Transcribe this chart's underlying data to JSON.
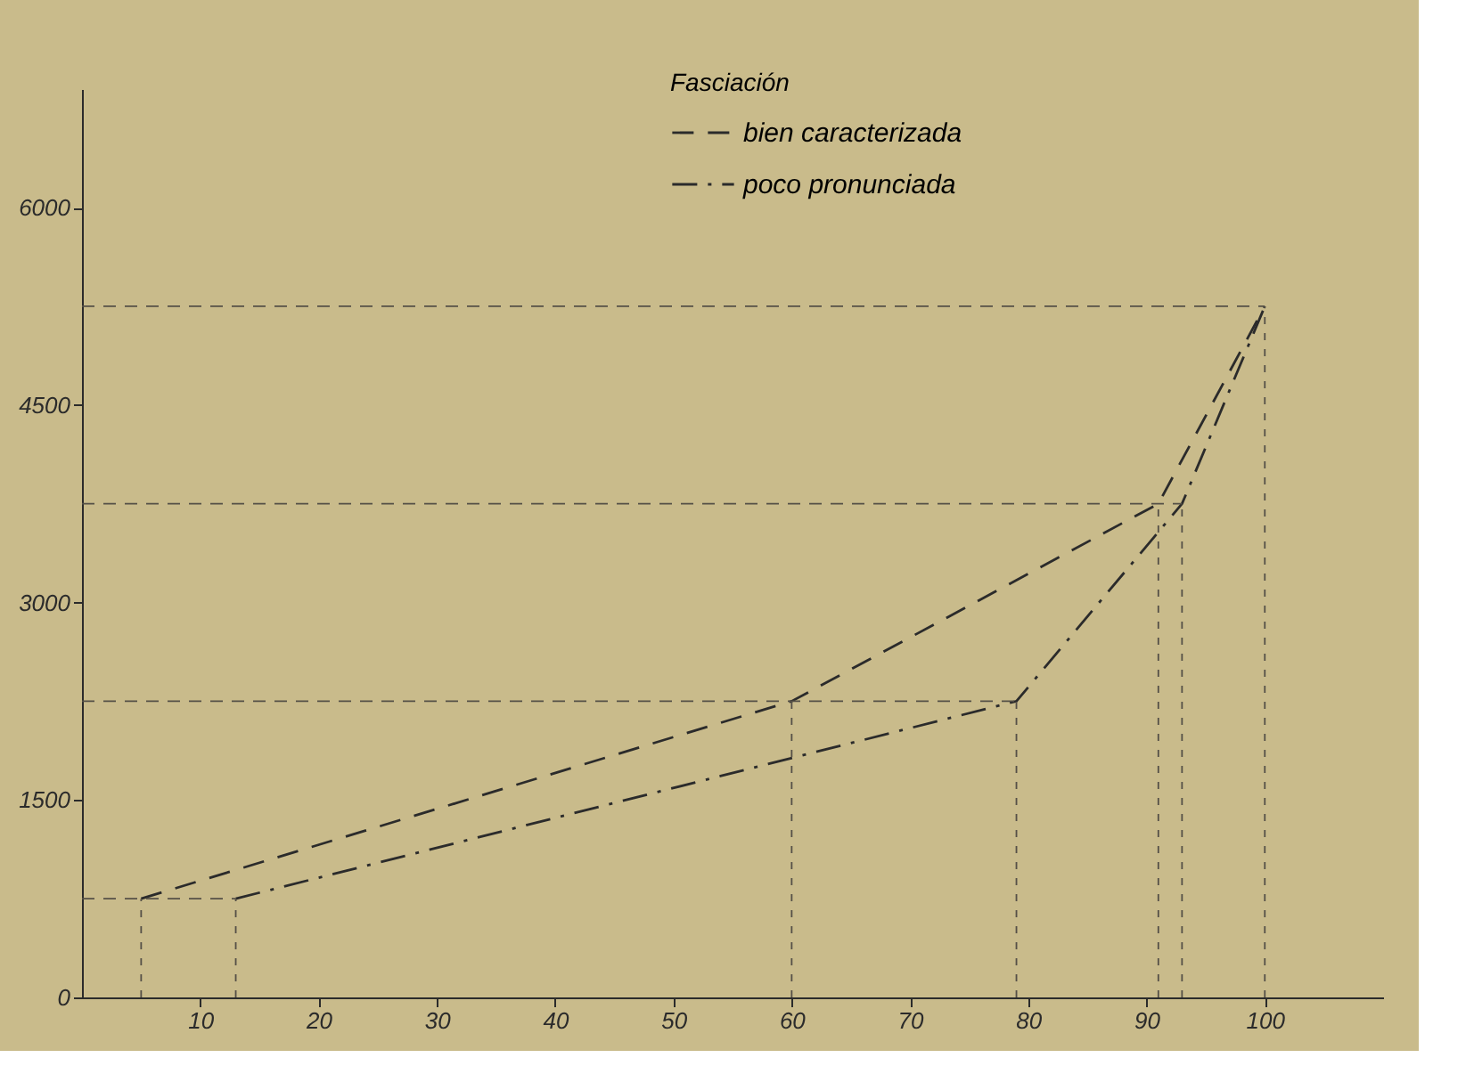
{
  "chart_data": {
    "type": "line",
    "legend_title": "Fasciación",
    "series": [
      {
        "name": "bien caracterizada",
        "color": "#2b2b2b",
        "line_style": "dashed",
        "x": [
          5,
          60,
          91,
          100
        ],
        "values": [
          750,
          2250,
          3750,
          5250
        ]
      },
      {
        "name": "poco pronunciada",
        "color": "#2b2b2b",
        "line_style": "dashdot",
        "x": [
          13,
          79,
          93,
          100
        ],
        "values": [
          750,
          2250,
          3750,
          5250
        ]
      }
    ],
    "xlim": [
      0,
      110
    ],
    "xticks": [
      10,
      20,
      30,
      40,
      50,
      60,
      70,
      80,
      90,
      100
    ],
    "ylim": [
      0,
      6900
    ],
    "yticks": [
      0,
      1500,
      3000,
      4500,
      6000
    ],
    "ref_lines": [
      {
        "axis": "y",
        "value": 750,
        "line_style": "dashed"
      },
      {
        "axis": "y",
        "value": 2250,
        "line_style": "dashed"
      },
      {
        "axis": "y",
        "value": 3750,
        "line_style": "dashed"
      },
      {
        "axis": "y",
        "value": 5250,
        "line_style": "dashed"
      },
      {
        "axis": "x",
        "value": 5,
        "line_style": "dashed"
      },
      {
        "axis": "x",
        "value": 13,
        "line_style": "dashed"
      },
      {
        "axis": "x",
        "value": 60,
        "line_style": "dashed"
      },
      {
        "axis": "x",
        "value": 79,
        "line_style": "dashed"
      },
      {
        "axis": "x",
        "value": 91,
        "line_style": "dashed"
      },
      {
        "axis": "x",
        "value": 93,
        "line_style": "dashed"
      },
      {
        "axis": "x",
        "value": 100,
        "line_style": "dashed"
      }
    ],
    "grid": false,
    "legend": "top"
  }
}
